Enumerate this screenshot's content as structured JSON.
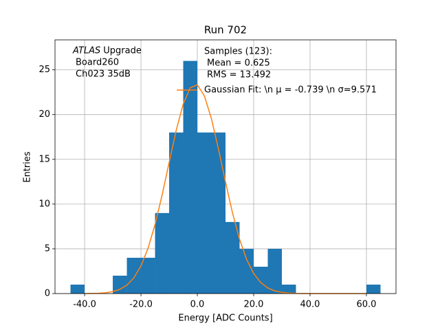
{
  "chart_data": {
    "type": "histogram",
    "title": "Run 702",
    "xlabel": "Energy [ADC Counts]",
    "ylabel": "Entries",
    "bins": [
      -45,
      -40,
      -35,
      -30,
      -25,
      -20,
      -15,
      -10,
      -5,
      0,
      5,
      10,
      15,
      20,
      25,
      30,
      35,
      40,
      45,
      50,
      55,
      60,
      65
    ],
    "counts": [
      1,
      0,
      0,
      2,
      4,
      4,
      9,
      18,
      26,
      18,
      18,
      8,
      5,
      3,
      5,
      1,
      0,
      0,
      0,
      0,
      0,
      1
    ],
    "color": "#1f77b4",
    "series": [
      {
        "name": "Gaussian Fit: \\n μ = -0.739 \\n σ=9.571",
        "color": "#ff7f0e",
        "x": [
          -40,
          -37.5,
          -35,
          -32.5,
          -30,
          -27.5,
          -25,
          -22.5,
          -20,
          -17.5,
          -15,
          -12.5,
          -10,
          -7.5,
          -5,
          -2.5,
          0,
          2.5,
          5,
          7.5,
          10,
          12.5,
          15,
          17.5,
          20,
          22.5,
          25,
          27.5,
          30,
          32.5,
          35,
          37.5,
          40,
          50,
          60
        ],
        "values": [
          0.005,
          0.015,
          0.04,
          0.09,
          0.22,
          0.47,
          0.94,
          1.76,
          3.09,
          5.05,
          7.71,
          11.0,
          14.65,
          18.23,
          21.2,
          23.0,
          23.33,
          22.1,
          19.55,
          16.15,
          12.47,
          8.99,
          6.06,
          3.81,
          2.24,
          1.23,
          0.63,
          0.3,
          0.13,
          0.06,
          0.02,
          0.01,
          0,
          0,
          0
        ]
      }
    ],
    "legend_texts": [
      "Samples (123):",
      "Mean = 0.625",
      "RMS = 13.492"
    ],
    "annotations": [
      "ATLAS",
      "Upgrade",
      "Board260",
      "Ch023 35dB"
    ],
    "xlim": [
      -50.5,
      70.5
    ],
    "ylim": [
      0,
      28.35
    ],
    "xticks": [
      {
        "value": -40,
        "label": "-40.0"
      },
      {
        "value": -20,
        "label": "-20.0"
      },
      {
        "value": 0,
        "label": "0.0"
      },
      {
        "value": 20,
        "label": "20.0"
      },
      {
        "value": 40,
        "label": "40.0"
      },
      {
        "value": 60,
        "label": "60.0"
      }
    ],
    "yticks": [
      0,
      5,
      10,
      15,
      20,
      25
    ],
    "grid": true
  }
}
